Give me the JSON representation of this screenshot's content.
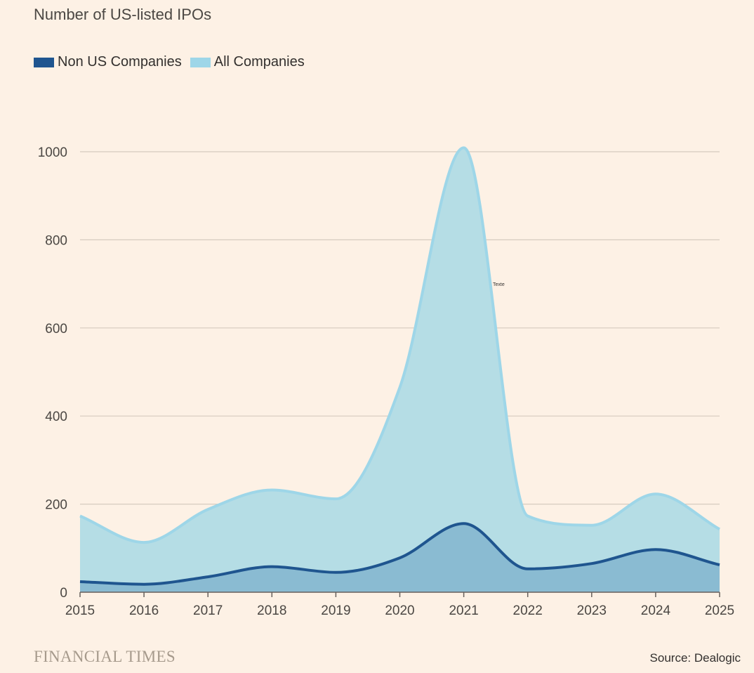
{
  "chart_data": {
    "type": "area",
    "title": "Number of US-listed IPOs",
    "x": [
      2015,
      2016,
      2017,
      2018,
      2019,
      2020,
      2021,
      2022,
      2023,
      2024,
      2025
    ],
    "ylim": [
      0,
      1000
    ],
    "yticks": [
      0,
      200,
      400,
      600,
      800,
      1000
    ],
    "grid": true,
    "legend_position": "top-left",
    "series": [
      {
        "name": "All Companies",
        "color": "#9ed6e8",
        "fill": "#b5dde5",
        "values": [
          173,
          113,
          188,
          232,
          212,
          465,
          1009,
          173,
          152,
          223,
          143
        ]
      },
      {
        "name": "Non US Companies",
        "color": "#1f558f",
        "fill": "#8abbd2",
        "values": [
          24,
          18,
          35,
          58,
          45,
          78,
          156,
          53,
          65,
          97,
          62
        ]
      }
    ],
    "annotations": [
      "Texte"
    ]
  },
  "legend": {
    "items": [
      {
        "label": "Non US Companies",
        "color": "#1f558f"
      },
      {
        "label": "All Companies",
        "color": "#9ed6e8"
      }
    ]
  },
  "footer": {
    "brand": "FINANCIAL TIMES",
    "source": "Source: Dealogic"
  }
}
